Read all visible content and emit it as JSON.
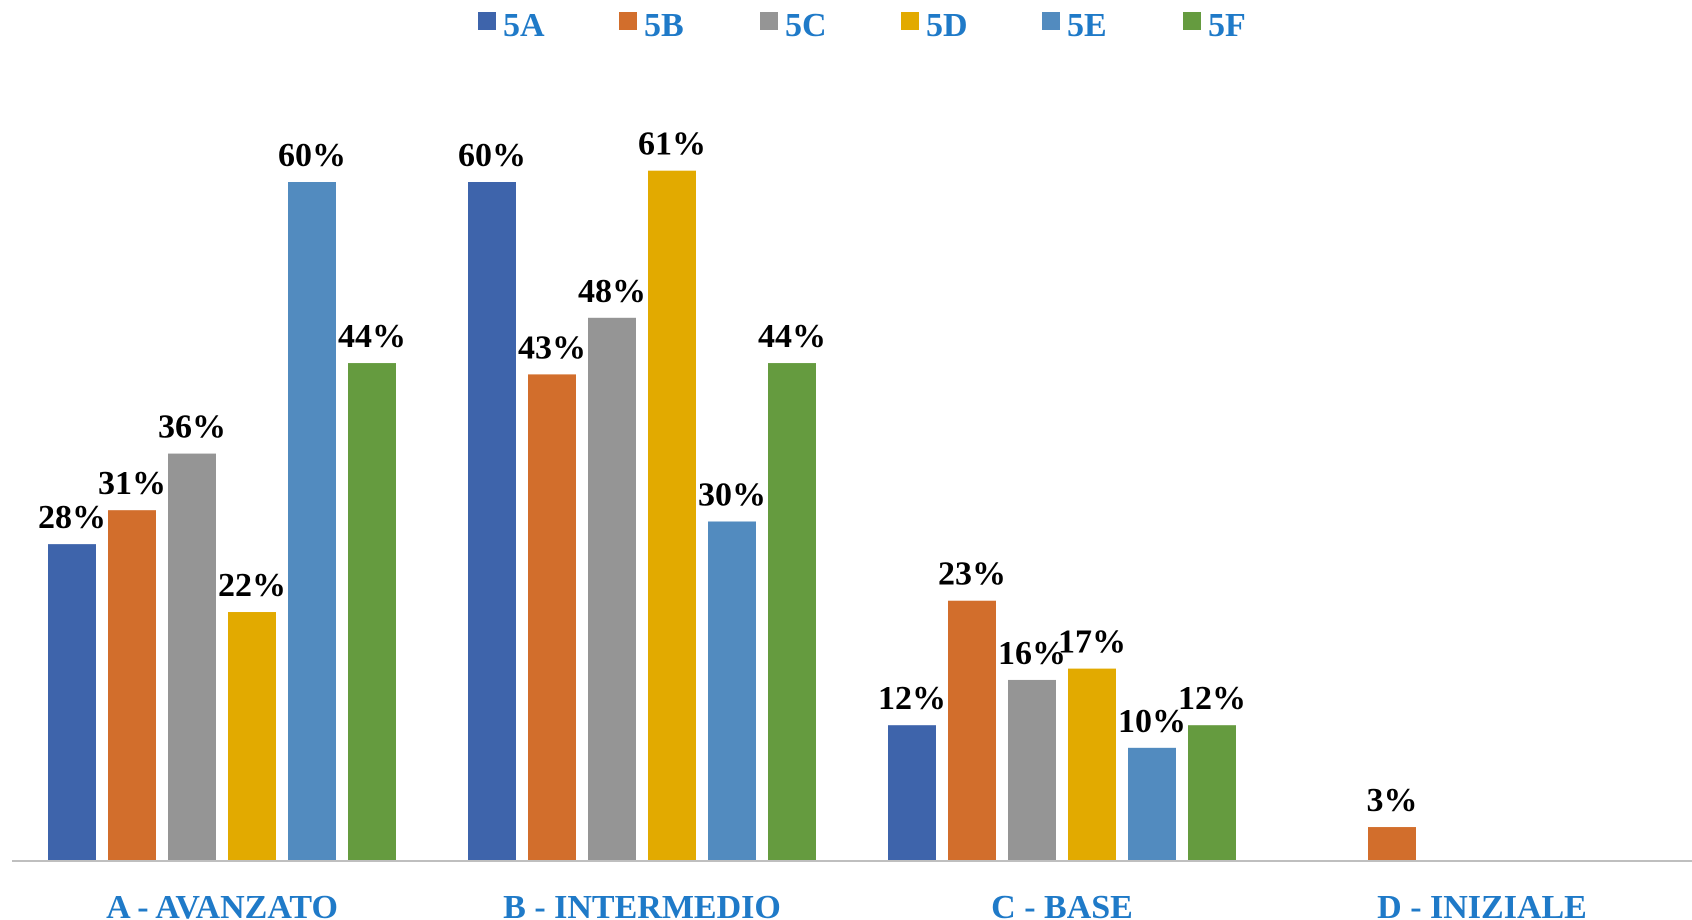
{
  "chart_data": {
    "type": "bar",
    "title": "",
    "xlabel": "",
    "ylabel": "",
    "ylim": [
      0,
      0.65
    ],
    "grid": false,
    "legend_position": "top",
    "categories": [
      "A - AVANZATO",
      "B - INTERMEDIO",
      "C - BASE",
      "D - INIZIALE"
    ],
    "series": [
      {
        "name": "5A",
        "color": "#3e64ab",
        "values": [
          0.28,
          0.6,
          0.12,
          null
        ],
        "labels": [
          "28%",
          "60%",
          "12%",
          ""
        ]
      },
      {
        "name": "5B",
        "color": "#d26e2c",
        "values": [
          0.31,
          0.43,
          0.23,
          0.03
        ],
        "labels": [
          "31%",
          "43%",
          "23%",
          "3%"
        ]
      },
      {
        "name": "5C",
        "color": "#959595",
        "values": [
          0.36,
          0.48,
          0.16,
          null
        ],
        "labels": [
          "36%",
          "48%",
          "16%",
          ""
        ]
      },
      {
        "name": "5D",
        "color": "#e2aa00",
        "values": [
          0.22,
          0.61,
          0.17,
          null
        ],
        "labels": [
          "22%",
          "61%",
          "17%",
          ""
        ]
      },
      {
        "name": "5E",
        "color": "#528bbf",
        "values": [
          0.6,
          0.3,
          0.1,
          null
        ],
        "labels": [
          "60%",
          "30%",
          "10%",
          ""
        ]
      },
      {
        "name": "5F",
        "color": "#659b3f",
        "values": [
          0.44,
          0.44,
          0.12,
          null
        ],
        "labels": [
          "44%",
          "44%",
          "12%",
          ""
        ]
      }
    ],
    "legend_text_color": "#1f7ac8",
    "category_text_color": "#1f7ac8",
    "axis_color": "#bfbfbf"
  }
}
